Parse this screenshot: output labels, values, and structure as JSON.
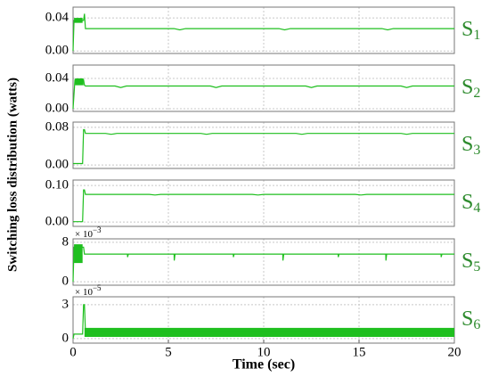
{
  "chart_data": [
    {
      "type": "line",
      "label": "S",
      "label_sub": "1",
      "ylabel": "Switching loss distribution (watts)",
      "color": "#1fbf1f",
      "xlim": [
        0,
        20
      ],
      "ylim": [
        -0.003,
        0.053
      ],
      "yticks": [
        {
          "value": 0,
          "label": "0.00"
        },
        {
          "value": 0.04,
          "label": "0.04"
        }
      ],
      "x": [
        0,
        0.05,
        0.55,
        0.6,
        0.65,
        0.7,
        5.3,
        5.6,
        5.9,
        10.8,
        11.1,
        11.4,
        16.2,
        16.5,
        16.8,
        20
      ],
      "values": [
        0,
        0.037,
        0.037,
        0.045,
        0.027,
        0.027,
        0.027,
        0.0255,
        0.027,
        0.027,
        0.0255,
        0.027,
        0.027,
        0.0255,
        0.027,
        0.027
      ],
      "bands": [
        {
          "x": [
            0.05,
            0.5
          ],
          "y": [
            0.034,
            0.04
          ]
        }
      ]
    },
    {
      "type": "line",
      "label": "S",
      "label_sub": "2",
      "color": "#1fbf1f",
      "xlim": [
        0,
        20
      ],
      "ylim": [
        -0.0035,
        0.0576
      ],
      "yticks": [
        {
          "value": 0,
          "label": "0.00"
        },
        {
          "value": 0.04,
          "label": "0.04"
        }
      ],
      "x": [
        0,
        0.1,
        0.55,
        0.6,
        0.65,
        2.2,
        2.5,
        2.8,
        7.2,
        7.5,
        7.8,
        12.2,
        12.5,
        12.8,
        17.2,
        17.5,
        17.8,
        20
      ],
      "values": [
        0,
        0.038,
        0.038,
        0.031,
        0.03,
        0.03,
        0.028,
        0.03,
        0.03,
        0.028,
        0.03,
        0.03,
        0.028,
        0.03,
        0.03,
        0.028,
        0.03,
        0.03
      ],
      "bands": [
        {
          "x": [
            0.1,
            0.55
          ],
          "y": [
            0.031,
            0.04
          ]
        }
      ]
    },
    {
      "type": "line",
      "label": "S",
      "label_sub": "3",
      "color": "#1fbf1f",
      "xlim": [
        0,
        20
      ],
      "ylim": [
        -0.0074,
        0.091
      ],
      "yticks": [
        {
          "value": 0,
          "label": "0.00"
        },
        {
          "value": 0.08,
          "label": "0.08"
        }
      ],
      "x": [
        0,
        0.5,
        0.55,
        0.6,
        0.65,
        1.7,
        2,
        2.3,
        6.7,
        7,
        7.3,
        11.7,
        12,
        12.3,
        17.2,
        17.5,
        17.8,
        20
      ],
      "values": [
        0.003,
        0.003,
        0.075,
        0.075,
        0.067,
        0.067,
        0.065,
        0.067,
        0.067,
        0.065,
        0.067,
        0.067,
        0.065,
        0.067,
        0.067,
        0.065,
        0.067,
        0.067
      ]
    },
    {
      "type": "line",
      "label": "S",
      "label_sub": "4",
      "color": "#1fbf1f",
      "xlim": [
        0,
        20
      ],
      "ylim": [
        -0.012,
        0.115
      ],
      "yticks": [
        {
          "value": 0,
          "label": "0.00"
        },
        {
          "value": 0.1,
          "label": "0.10"
        }
      ],
      "x": [
        0,
        0.5,
        0.55,
        0.6,
        0.65,
        4,
        4.3,
        4.6,
        9.4,
        9.7,
        10,
        14.8,
        15.1,
        15.4,
        20
      ],
      "values": [
        0.001,
        0.001,
        0.088,
        0.088,
        0.0756,
        0.0756,
        0.074,
        0.0756,
        0.0756,
        0.074,
        0.0756,
        0.0756,
        0.074,
        0.0756,
        0.0756
      ]
    },
    {
      "type": "line",
      "label": "S",
      "label_sub": "5",
      "color": "#1fbf1f",
      "multiplier": "× 10",
      "multiplier_power": "−3",
      "xlim": [
        0,
        20
      ],
      "ylim": [
        -0.7,
        8.7
      ],
      "yticks": [
        0,
        8
      ],
      "x": [
        0,
        0.05,
        0.55,
        0.6,
        2.85,
        2.86,
        2.9,
        5.3,
        5.31,
        5.35,
        8.4,
        8.41,
        8.45,
        11,
        11.01,
        11.05,
        13.9,
        13.91,
        13.95,
        16.4,
        16.41,
        16.45,
        19.3,
        19.31,
        19.35,
        20
      ],
      "values": [
        0,
        7,
        7,
        5.6,
        5.6,
        5,
        5.6,
        5.6,
        4.3,
        5.6,
        5.6,
        5,
        5.6,
        5.6,
        4.3,
        5.6,
        5.6,
        5,
        5.6,
        5.6,
        4.3,
        5.6,
        5.6,
        5,
        5.6,
        5.6
      ],
      "bands": [
        {
          "x": [
            0.05,
            0.5
          ],
          "y": [
            3.8,
            7.6
          ]
        }
      ]
    },
    {
      "type": "line",
      "label": "S",
      "label_sub": "6",
      "color": "#1fbf1f",
      "multiplier": "× 10",
      "multiplier_power": "−5",
      "xlabel": "Time (sec)",
      "xlim": [
        0,
        20
      ],
      "xticks": [
        0,
        5,
        10,
        15,
        20
      ],
      "ylim": [
        -0.4,
        3.7
      ],
      "yticks": [
        0,
        3
      ],
      "x": [
        0,
        0.05,
        0.5,
        0.55,
        0.6,
        0.65,
        20
      ],
      "values": [
        0,
        0.4,
        0.4,
        3,
        3,
        0.6,
        0.6
      ],
      "bands": [
        {
          "x": [
            0.6,
            20
          ],
          "y": [
            0.15,
            0.95
          ]
        }
      ]
    }
  ]
}
